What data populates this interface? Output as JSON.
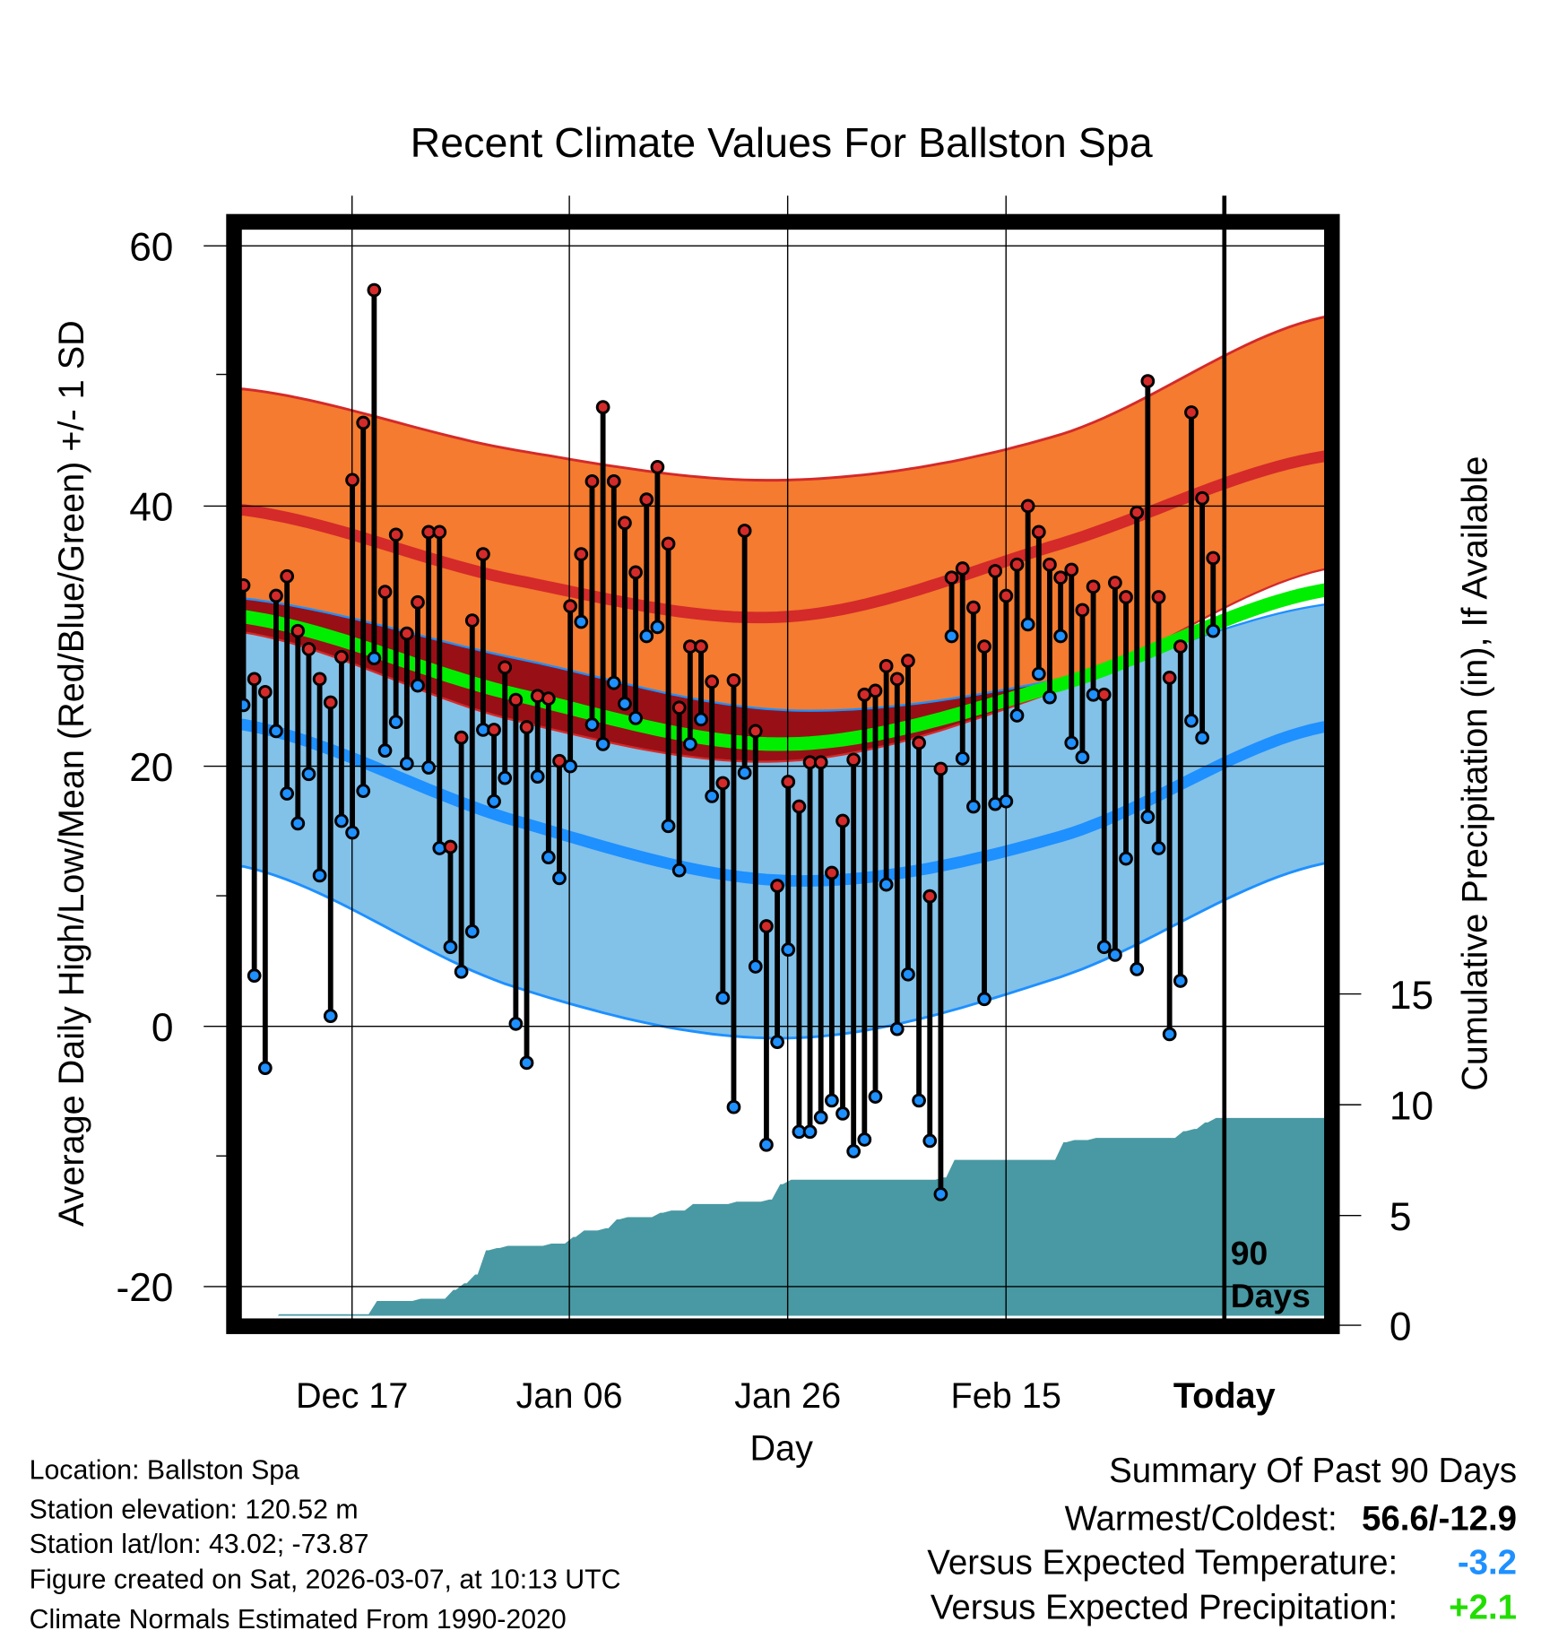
{
  "chart_data": {
    "type": "line",
    "title": "Recent Climate Values For Ballston Spa",
    "xlabel": "Day",
    "ylabel": "Average Daily High/Low/Mean (Red/Blue/Green) +/- 1 SD",
    "ylabel_right": "Cumulative Precipitation (in), If Available",
    "ylim": [
      -22,
      61.5
    ],
    "ylim_right": [
      0,
      15
    ],
    "yticks": [
      "60",
      "40",
      "20",
      "0",
      "-20"
    ],
    "yticks_right": [
      "15",
      "10",
      "5",
      "0"
    ],
    "xticks": [
      "Dec 17",
      "Jan 06",
      "Jan 26",
      "Feb 15",
      "Today"
    ],
    "today_marker": {
      "line1": "90",
      "line2": "Days"
    },
    "days_start": "Dec 07",
    "grid": true,
    "highs": [
      33.9,
      26.7,
      25.7,
      33.1,
      34.6,
      30.4,
      29.0,
      26.7,
      24.9,
      28.4,
      42.0,
      46.4,
      56.6,
      33.4,
      37.8,
      30.2,
      32.6,
      38.0,
      38.0,
      13.8,
      22.2,
      31.2,
      36.3,
      22.8,
      27.6,
      25.1,
      23.0,
      25.4,
      25.2,
      20.4,
      32.3,
      36.3,
      41.9,
      47.6,
      41.9,
      38.7,
      34.9,
      40.5,
      43.0,
      37.1,
      24.5,
      29.2,
      29.2,
      26.5,
      18.7,
      26.6,
      38.1,
      22.7,
      7.7,
      10.8,
      18.8,
      16.9,
      20.3,
      20.3,
      11.8,
      15.8,
      20.5,
      25.5,
      25.8,
      27.7,
      26.7,
      28.1,
      21.8,
      10.0,
      19.8,
      34.5,
      35.2,
      32.2,
      29.2,
      35.0,
      33.1,
      35.5,
      40.0,
      38.0,
      35.5,
      34.5,
      35.1,
      32.0,
      33.8,
      25.5,
      34.1,
      33.0,
      39.5,
      49.6,
      33.0,
      26.8,
      29.2,
      47.2,
      40.6,
      36.0
    ],
    "lows": [
      24.7,
      3.9,
      -3.2,
      22.7,
      17.9,
      15.6,
      19.4,
      11.6,
      0.8,
      15.8,
      14.9,
      18.1,
      28.3,
      21.2,
      23.4,
      20.2,
      26.2,
      19.9,
      13.7,
      6.1,
      4.2,
      7.3,
      22.8,
      17.3,
      19.1,
      0.2,
      -2.8,
      19.2,
      13.0,
      11.4,
      20.0,
      31.1,
      23.2,
      21.7,
      26.4,
      24.8,
      23.7,
      30.0,
      30.7,
      15.4,
      12.0,
      21.7,
      23.6,
      17.7,
      2.2,
      -6.2,
      19.5,
      4.6,
      -9.1,
      -1.2,
      5.9,
      -8.1,
      -8.1,
      -7.0,
      -5.7,
      -6.7,
      -9.6,
      -8.7,
      -5.4,
      10.9,
      -0.2,
      4.0,
      -5.7,
      -8.8,
      -12.9,
      30.0,
      20.6,
      16.9,
      2.1,
      17.1,
      17.3,
      23.9,
      30.9,
      27.1,
      25.3,
      30.0,
      21.8,
      20.7,
      25.5,
      6.1,
      5.5,
      12.9,
      4.4,
      16.1,
      13.7,
      -0.6,
      3.5,
      23.5,
      22.2,
      30.4
    ],
    "normals": {
      "control_days": [
        0,
        25,
        50,
        75,
        99
      ],
      "high_plus_sd": [
        49.0,
        44.3,
        42.0,
        45.5,
        54.5
      ],
      "high_mean": [
        39.7,
        34.3,
        31.5,
        37.1,
        43.8
      ],
      "high_minus_sd": [
        30.3,
        23.5,
        20.4,
        25.9,
        35.1
      ],
      "low_plus_sd": [
        32.9,
        28.3,
        24.3,
        26.7,
        32.4
      ],
      "mean": [
        31.5,
        25.5,
        21.7,
        26.3,
        33.5
      ],
      "low_mean": [
        23.2,
        15.8,
        11.2,
        14.6,
        23.0
      ],
      "low_minus_sd": [
        12.3,
        3.0,
        -0.9,
        3.8,
        12.5
      ]
    },
    "cumulative_precip": [
      0,
      0,
      0,
      0.5,
      0.5,
      0.5,
      0.5,
      0.5,
      0.5,
      0.5,
      0.5,
      0.5,
      1.1,
      1.1,
      1.1,
      1.1,
      1.2,
      1.2,
      1.2,
      1.6,
      1.9,
      2.3,
      3.4,
      3.5,
      3.6,
      3.6,
      3.6,
      3.6,
      3.7,
      3.7,
      4.0,
      4.3,
      4.3,
      4.4,
      4.8,
      4.9,
      4.9,
      4.9,
      5.1,
      5.2,
      5.2,
      5.5,
      5.5,
      5.5,
      5.5,
      5.6,
      5.6,
      5.6,
      5.7,
      6.4,
      6.6,
      6.6,
      6.6,
      6.6,
      6.6,
      6.6,
      6.6,
      6.6,
      6.6,
      6.6,
      6.6,
      6.6,
      6.6,
      6.6,
      6.7,
      7.5,
      7.5,
      7.5,
      7.5,
      7.5,
      7.5,
      7.5,
      7.5,
      7.5,
      7.5,
      8.3,
      8.4,
      8.4,
      8.5,
      8.5,
      8.5,
      8.5,
      8.5,
      8.5,
      8.5,
      8.5,
      8.8,
      8.9,
      9.2,
      9.4
    ]
  },
  "colors": {
    "high_band": "#f47b2f",
    "high_line": "#d42a2a",
    "overlap_band": "#981016",
    "low_band": "#82c1e8",
    "low_line": "#1e90ff",
    "mean_line": "#00ee00",
    "precip": "#4899a3",
    "temp_anomaly": "#1e90ff",
    "precip_anomaly": "#22dd00"
  },
  "info": {
    "location": "Location: Ballston Spa",
    "elevation": "Station elevation: 120.52 m",
    "latlon": "Station lat/lon: 43.02; -73.87",
    "created": "Figure created on Sat, 2026-03-07, at 10:13 UTC",
    "normals": "Climate Normals Estimated From 1990-2020"
  },
  "summary": {
    "title": "Summary Of Past 90 Days",
    "warmest_label": "Warmest/Coldest:",
    "warmest_value": "56.6/-12.9",
    "temp_label": "Versus Expected Temperature:",
    "temp_value": "-3.2",
    "precip_label": "Versus Expected Precipitation:",
    "precip_value": "+2.1"
  }
}
